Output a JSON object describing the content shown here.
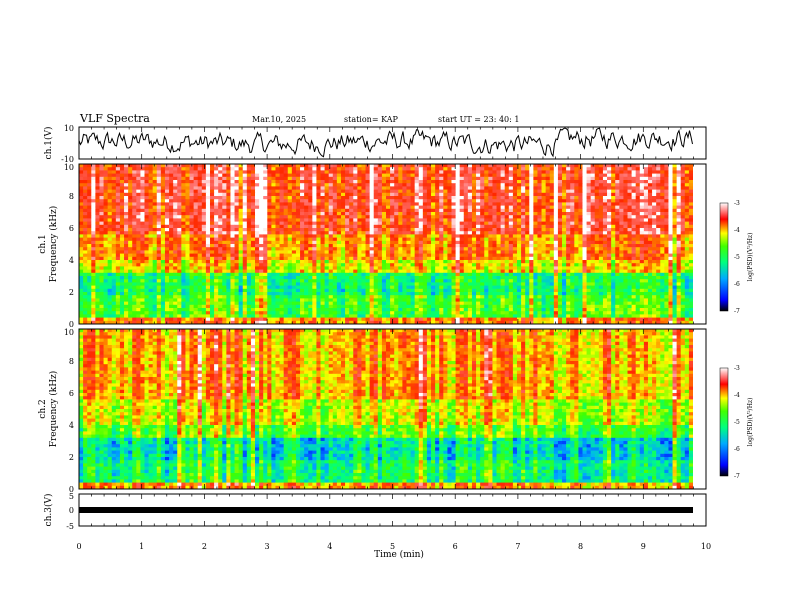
{
  "header": {
    "title": "VLF Spectra",
    "date": "Mar.10, 2025",
    "station": "station= KAP",
    "start": "start  UT  =   23: 40: 1"
  },
  "chart_data": [
    {
      "type": "line",
      "id": "ch1",
      "ylabel": "ch.1(V)",
      "ylim": [
        -10,
        10
      ],
      "yticks": [
        "10",
        "-10"
      ],
      "xlim": [
        0,
        10
      ]
    },
    {
      "type": "heatmap",
      "id": "spec1",
      "ylabel_top": "ch.1",
      "ylabel": "Frequency (kHz)",
      "ylim": [
        0,
        10
      ],
      "yticks": [
        "0",
        "2",
        "4",
        "6",
        "8",
        "10"
      ],
      "colorbar": {
        "label": "log(PSD)(V²/Hz)",
        "min": -7,
        "max": -3,
        "ticks": [
          "-3",
          "-4",
          "-5",
          "-6",
          "-7"
        ]
      }
    },
    {
      "type": "heatmap",
      "id": "spec2",
      "ylabel_top": "ch.2",
      "ylabel": "Frequency (kHz)",
      "ylim": [
        0,
        10
      ],
      "yticks": [
        "0",
        "2",
        "4",
        "6",
        "8",
        "10"
      ],
      "colorbar": {
        "label": "log(PSD)(V²/Hz)",
        "min": -7,
        "max": -3,
        "ticks": [
          "-3",
          "-4",
          "-5",
          "-6",
          "-7"
        ]
      }
    },
    {
      "type": "line",
      "id": "ch3",
      "ylabel": "ch.3(V)",
      "ylim": [
        -5,
        5
      ],
      "yticks": [
        "5",
        "0",
        "-5"
      ],
      "xlim": [
        0,
        10
      ]
    }
  ],
  "xaxis": {
    "label": "Time  (min)",
    "ticks": [
      "0",
      "1",
      "2",
      "3",
      "4",
      "5",
      "6",
      "7",
      "8",
      "9",
      "10"
    ]
  }
}
